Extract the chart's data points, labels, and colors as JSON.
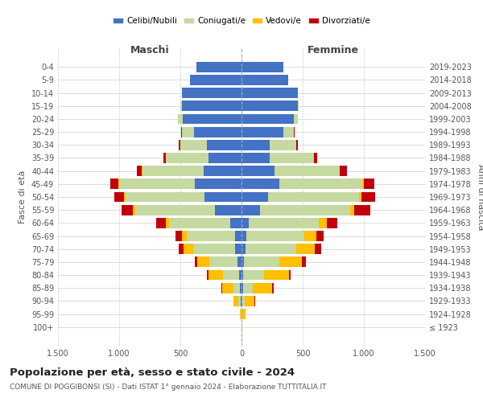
{
  "age_groups": [
    "100+",
    "95-99",
    "90-94",
    "85-89",
    "80-84",
    "75-79",
    "70-74",
    "65-69",
    "60-64",
    "55-59",
    "50-54",
    "45-49",
    "40-44",
    "35-39",
    "30-34",
    "25-29",
    "20-24",
    "15-19",
    "10-14",
    "5-9",
    "0-4"
  ],
  "birth_years": [
    "≤ 1923",
    "1924-1928",
    "1929-1933",
    "1934-1938",
    "1939-1943",
    "1944-1948",
    "1949-1953",
    "1954-1958",
    "1959-1963",
    "1964-1968",
    "1969-1973",
    "1974-1978",
    "1979-1983",
    "1984-1988",
    "1989-1993",
    "1994-1998",
    "1999-2003",
    "2004-2008",
    "2009-2013",
    "2014-2018",
    "2019-2023"
  ],
  "colors": {
    "celibi": "#4472c4",
    "coniugati": "#c5d9a0",
    "vedovi": "#ffc000",
    "divorziati": "#c0000b"
  },
  "maschi": {
    "celibi": [
      0,
      2,
      5,
      10,
      20,
      35,
      55,
      55,
      90,
      220,
      300,
      380,
      310,
      270,
      280,
      390,
      480,
      490,
      490,
      420,
      370
    ],
    "coniugati": [
      0,
      5,
      20,
      55,
      130,
      230,
      340,
      390,
      500,
      650,
      650,
      620,
      500,
      350,
      220,
      100,
      40,
      10,
      0,
      0,
      0
    ],
    "vedovi": [
      2,
      8,
      40,
      95,
      120,
      95,
      80,
      45,
      30,
      15,
      10,
      5,
      5,
      0,
      0,
      0,
      0,
      0,
      0,
      0,
      0
    ],
    "divorziati": [
      0,
      0,
      0,
      5,
      10,
      20,
      35,
      50,
      80,
      95,
      80,
      70,
      40,
      20,
      15,
      5,
      0,
      0,
      0,
      0,
      0
    ]
  },
  "femmine": {
    "celibi": [
      0,
      2,
      5,
      10,
      15,
      20,
      35,
      40,
      60,
      150,
      220,
      310,
      270,
      230,
      230,
      340,
      430,
      460,
      460,
      380,
      340
    ],
    "coniugati": [
      0,
      5,
      20,
      80,
      170,
      290,
      410,
      470,
      570,
      740,
      740,
      680,
      530,
      360,
      220,
      90,
      30,
      5,
      0,
      0,
      0
    ],
    "vedovi": [
      5,
      25,
      80,
      160,
      200,
      185,
      155,
      100,
      65,
      30,
      20,
      8,
      5,
      2,
      0,
      0,
      0,
      0,
      0,
      0,
      0
    ],
    "divorziati": [
      0,
      0,
      5,
      10,
      15,
      30,
      50,
      60,
      90,
      130,
      110,
      90,
      55,
      25,
      10,
      5,
      0,
      0,
      0,
      0,
      0
    ]
  },
  "xlim": 1500,
  "title": "Popolazione per età, sesso e stato civile - 2024",
  "subtitle": "COMUNE DI POGGIBONSI (SI) - Dati ISTAT 1° gennaio 2024 - Elaborazione TUTTITALIA.IT",
  "xlabel_maschi": "Maschi",
  "xlabel_femmine": "Femmine",
  "ylabel_left": "Fasce di età",
  "ylabel_right": "Anni di nascita",
  "legend_labels": [
    "Celibi/Nubili",
    "Coniugati/e",
    "Vedovi/e",
    "Divorziati/e"
  ],
  "background_color": "#ffffff",
  "grid_color": "#cccccc"
}
